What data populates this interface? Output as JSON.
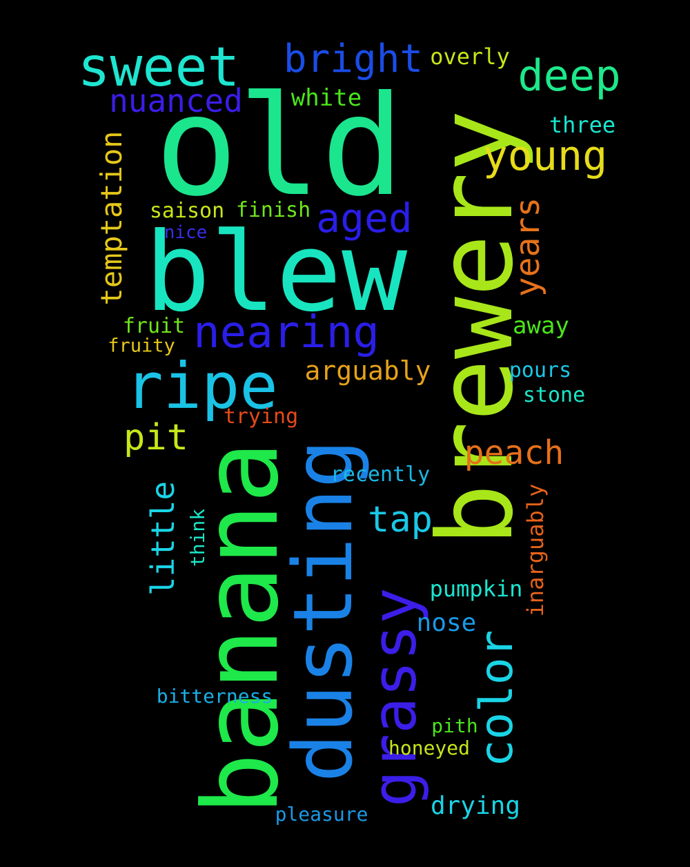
{
  "background": "#000000",
  "words": [
    {
      "id": "old",
      "text": "old",
      "color": "#1be58d",
      "vertical": false
    },
    {
      "id": "blew",
      "text": "blew",
      "color": "#18e5c0",
      "vertical": false
    },
    {
      "id": "brewery",
      "text": "brewery",
      "color": "#a8e61a",
      "vertical": true
    },
    {
      "id": "banana",
      "text": "banana",
      "color": "#1ee84a",
      "vertical": true
    },
    {
      "id": "dusting",
      "text": "dusting",
      "color": "#1a82e6",
      "vertical": true
    },
    {
      "id": "grassy",
      "text": "grassy",
      "color": "#3b1ee8",
      "vertical": true
    },
    {
      "id": "sweet",
      "text": "sweet",
      "color": "#1ee5d0",
      "vertical": false
    },
    {
      "id": "ripe",
      "text": "ripe",
      "color": "#1ac3e6",
      "vertical": false
    },
    {
      "id": "nearing",
      "text": "nearing",
      "color": "#2a1ee8",
      "vertical": false
    },
    {
      "id": "bright",
      "text": "bright",
      "color": "#1a4de6",
      "vertical": false
    },
    {
      "id": "deep",
      "text": "deep",
      "color": "#1ee88a",
      "vertical": false
    },
    {
      "id": "young",
      "text": "young",
      "color": "#e6dc1a",
      "vertical": false
    },
    {
      "id": "color",
      "text": "color",
      "color": "#1ad4e6",
      "vertical": true
    },
    {
      "id": "aged",
      "text": "aged",
      "color": "#2a1ee8",
      "vertical": false
    },
    {
      "id": "nuanced",
      "text": "nuanced",
      "color": "#3a1ee8",
      "vertical": false
    },
    {
      "id": "years",
      "text": "years",
      "color": "#e6721a",
      "vertical": true
    },
    {
      "id": "temptation",
      "text": "temptation",
      "color": "#e6c81a",
      "vertical": true
    },
    {
      "id": "peach",
      "text": "peach",
      "color": "#e6701a",
      "vertical": false
    },
    {
      "id": "pit",
      "text": "pit",
      "color": "#c8e61a",
      "vertical": false
    },
    {
      "id": "tap",
      "text": "tap",
      "color": "#1ac8e6",
      "vertical": false
    },
    {
      "id": "little",
      "text": "little",
      "color": "#1ad4e6",
      "vertical": true
    },
    {
      "id": "arguably",
      "text": "arguably",
      "color": "#e6a21a",
      "vertical": false
    },
    {
      "id": "white",
      "text": "white",
      "color": "#4ae61a",
      "vertical": false
    },
    {
      "id": "overly",
      "text": "overly",
      "color": "#c8e61a",
      "vertical": false
    },
    {
      "id": "three",
      "text": "three",
      "color": "#1ae6d0",
      "vertical": false
    },
    {
      "id": "away",
      "text": "away",
      "color": "#4ae61a",
      "vertical": false
    },
    {
      "id": "inarguably",
      "text": "inarguably",
      "color": "#e6621a",
      "vertical": true
    },
    {
      "id": "saison",
      "text": "saison",
      "color": "#c8e61a",
      "vertical": false
    },
    {
      "id": "finish",
      "text": "finish",
      "color": "#6ee61a",
      "vertical": false
    },
    {
      "id": "nice",
      "text": "nice",
      "color": "#3a2ee8",
      "vertical": false
    },
    {
      "id": "fruit",
      "text": "fruit",
      "color": "#6ee61a",
      "vertical": false
    },
    {
      "id": "fruity",
      "text": "fruity",
      "color": "#e6c81a",
      "vertical": false
    },
    {
      "id": "pours",
      "text": "pours",
      "color": "#1ac8e6",
      "vertical": false
    },
    {
      "id": "stone",
      "text": "stone",
      "color": "#1ae6c8",
      "vertical": false
    },
    {
      "id": "trying",
      "text": "trying",
      "color": "#e64a1a",
      "vertical": false
    },
    {
      "id": "recently",
      "text": "recently",
      "color": "#1ab8e6",
      "vertical": false
    },
    {
      "id": "pumpkin",
      "text": "pumpkin",
      "color": "#1ae6d0",
      "vertical": false
    },
    {
      "id": "nose",
      "text": "nose",
      "color": "#1a9ae6",
      "vertical": false
    },
    {
      "id": "think",
      "text": "think",
      "color": "#1ae6c8",
      "vertical": true
    },
    {
      "id": "bitterness",
      "text": "bitterness",
      "color": "#1ab0e6",
      "vertical": false
    },
    {
      "id": "pith",
      "text": "pith",
      "color": "#4ae61a",
      "vertical": false
    },
    {
      "id": "honeyed",
      "text": "honeyed",
      "color": "#c8e61a",
      "vertical": false
    },
    {
      "id": "drying",
      "text": "drying",
      "color": "#1ad4e6",
      "vertical": false
    },
    {
      "id": "pleasure",
      "text": "pleasure",
      "color": "#1a9ae6",
      "vertical": false
    }
  ]
}
